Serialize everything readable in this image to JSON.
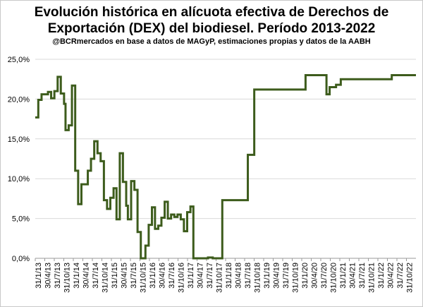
{
  "chart_data": {
    "type": "line",
    "title_line1": "Evolución histórica en alícuota efectiva de Derechos de",
    "title_line2": "Exportación (DEX) del biodiesel. Período 2013-2022",
    "subtitle": "@BCRmercados  en base a datos de MAGyP, estimaciones propias y datos de la AABH",
    "ylim": [
      0,
      25
    ],
    "yticks": [
      "0,0%",
      "5,0%",
      "10,0%",
      "15,0%",
      "20,0%",
      "25,0%"
    ],
    "xlim": [
      "2013-01-31",
      "2022-12-31"
    ],
    "xticks": [
      "31/1/13",
      "30/4/13",
      "31/7/13",
      "31/10/13",
      "31/1/14",
      "30/4/14",
      "31/7/14",
      "31/10/14",
      "31/1/15",
      "30/4/15",
      "31/7/15",
      "31/10/15",
      "31/1/16",
      "30/4/16",
      "31/7/16",
      "31/10/16",
      "31/1/17",
      "30/4/17",
      "31/7/17",
      "31/10/17",
      "31/1/18",
      "30/4/18",
      "31/7/18",
      "31/10/18",
      "31/1/19",
      "30/4/19",
      "31/7/19",
      "31/10/19",
      "31/1/20",
      "30/4/20",
      "31/7/20",
      "31/10/20",
      "31/1/21",
      "30/4/21",
      "31/7/21",
      "31/10/21",
      "31/1/22",
      "30/4/22",
      "31/7/22",
      "31/10/22"
    ],
    "grid": true,
    "line_color": "#3d5c1c",
    "series": [
      {
        "points": [
          [
            "2013-01-31",
            17.7
          ],
          [
            "2013-03-01",
            17.7
          ],
          [
            "2013-03-01",
            19.9
          ],
          [
            "2013-04-01",
            19.9
          ],
          [
            "2013-04-01",
            20.6
          ],
          [
            "2013-05-01",
            20.6
          ],
          [
            "2013-05-01",
            20.6
          ],
          [
            "2013-06-01",
            20.6
          ],
          [
            "2013-06-01",
            20.9
          ],
          [
            "2013-07-01",
            20.9
          ],
          [
            "2013-07-01",
            20.1
          ],
          [
            "2013-08-01",
            20.1
          ],
          [
            "2013-08-01",
            21.0
          ],
          [
            "2013-09-01",
            21.0
          ],
          [
            "2013-09-01",
            22.8
          ],
          [
            "2013-10-01",
            22.8
          ],
          [
            "2013-10-01",
            20.7
          ],
          [
            "2013-11-01",
            20.7
          ],
          [
            "2013-11-01",
            19.4
          ],
          [
            "2013-11-15",
            19.4
          ],
          [
            "2013-11-15",
            16.1
          ],
          [
            "2013-12-15",
            16.1
          ],
          [
            "2013-12-15",
            16.7
          ],
          [
            "2014-01-15",
            16.7
          ],
          [
            "2014-01-15",
            21.7
          ],
          [
            "2014-02-15",
            21.7
          ],
          [
            "2014-02-15",
            11.0
          ],
          [
            "2014-03-15",
            11.0
          ],
          [
            "2014-03-15",
            6.8
          ],
          [
            "2014-04-15",
            6.8
          ],
          [
            "2014-04-15",
            9.3
          ],
          [
            "2014-06-15",
            9.3
          ],
          [
            "2014-06-15",
            11.0
          ],
          [
            "2014-07-15",
            11.0
          ],
          [
            "2014-07-15",
            12.5
          ],
          [
            "2014-08-15",
            12.5
          ],
          [
            "2014-08-15",
            14.7
          ],
          [
            "2014-09-15",
            14.7
          ],
          [
            "2014-09-15",
            13.2
          ],
          [
            "2014-10-15",
            13.2
          ],
          [
            "2014-10-15",
            12.2
          ],
          [
            "2014-11-15",
            12.2
          ],
          [
            "2014-11-15",
            7.3
          ],
          [
            "2014-12-15",
            7.3
          ],
          [
            "2014-12-15",
            6.2
          ],
          [
            "2015-01-15",
            6.2
          ],
          [
            "2015-01-15",
            7.6
          ],
          [
            "2015-02-15",
            7.6
          ],
          [
            "2015-02-15",
            8.8
          ],
          [
            "2015-03-15",
            8.8
          ],
          [
            "2015-03-15",
            4.9
          ],
          [
            "2015-04-15",
            4.9
          ],
          [
            "2015-04-15",
            13.2
          ],
          [
            "2015-05-15",
            13.2
          ],
          [
            "2015-05-15",
            9.6
          ],
          [
            "2015-06-15",
            9.6
          ],
          [
            "2015-06-15",
            6.6
          ],
          [
            "2015-07-01",
            6.6
          ],
          [
            "2015-07-01",
            4.9
          ],
          [
            "2015-08-01",
            4.9
          ],
          [
            "2015-08-01",
            9.7
          ],
          [
            "2015-09-01",
            9.7
          ],
          [
            "2015-09-01",
            8.6
          ],
          [
            "2015-10-01",
            8.6
          ],
          [
            "2015-10-01",
            3.3
          ],
          [
            "2015-11-01",
            3.3
          ],
          [
            "2015-11-01",
            0.0
          ],
          [
            "2015-12-15",
            0.0
          ],
          [
            "2015-12-15",
            1.6
          ],
          [
            "2016-01-15",
            1.6
          ],
          [
            "2016-01-15",
            4.2
          ],
          [
            "2016-02-15",
            4.2
          ],
          [
            "2016-02-15",
            6.4
          ],
          [
            "2016-03-15",
            6.4
          ],
          [
            "2016-03-15",
            3.7
          ],
          [
            "2016-04-15",
            3.7
          ],
          [
            "2016-04-15",
            4.1
          ],
          [
            "2016-05-15",
            4.1
          ],
          [
            "2016-05-15",
            5.1
          ],
          [
            "2016-06-15",
            5.1
          ],
          [
            "2016-06-15",
            7.1
          ],
          [
            "2016-07-15",
            7.1
          ],
          [
            "2016-07-15",
            5.0
          ],
          [
            "2016-08-15",
            5.0
          ],
          [
            "2016-08-15",
            5.5
          ],
          [
            "2016-09-15",
            5.5
          ],
          [
            "2016-09-15",
            5.2
          ],
          [
            "2016-10-15",
            5.2
          ],
          [
            "2016-10-15",
            5.5
          ],
          [
            "2016-11-15",
            5.5
          ],
          [
            "2016-11-15",
            4.9
          ],
          [
            "2016-12-15",
            4.9
          ],
          [
            "2016-12-15",
            3.4
          ],
          [
            "2017-01-15",
            3.4
          ],
          [
            "2017-01-15",
            5.8
          ],
          [
            "2017-02-15",
            5.8
          ],
          [
            "2017-02-15",
            6.5
          ],
          [
            "2017-03-15",
            6.5
          ],
          [
            "2017-03-15",
            0.0
          ],
          [
            "2017-08-01",
            0.0
          ],
          [
            "2017-08-01",
            0.1
          ],
          [
            "2017-09-15",
            0.1
          ],
          [
            "2017-09-15",
            0.0
          ],
          [
            "2017-12-15",
            0.0
          ],
          [
            "2017-12-15",
            7.3
          ],
          [
            "2018-08-15",
            7.3
          ],
          [
            "2018-08-15",
            13.0
          ],
          [
            "2018-10-15",
            13.0
          ],
          [
            "2018-10-15",
            21.2
          ],
          [
            "2020-02-15",
            21.2
          ],
          [
            "2020-02-15",
            23.0
          ],
          [
            "2020-09-01",
            23.0
          ],
          [
            "2020-09-01",
            20.6
          ],
          [
            "2020-10-01",
            20.6
          ],
          [
            "2020-10-01",
            21.5
          ],
          [
            "2020-12-01",
            21.5
          ],
          [
            "2020-12-01",
            21.8
          ],
          [
            "2021-01-15",
            21.8
          ],
          [
            "2021-01-15",
            22.5
          ],
          [
            "2022-05-15",
            22.5
          ],
          [
            "2022-05-15",
            23.0
          ],
          [
            "2022-12-31",
            23.0
          ]
        ]
      }
    ]
  }
}
